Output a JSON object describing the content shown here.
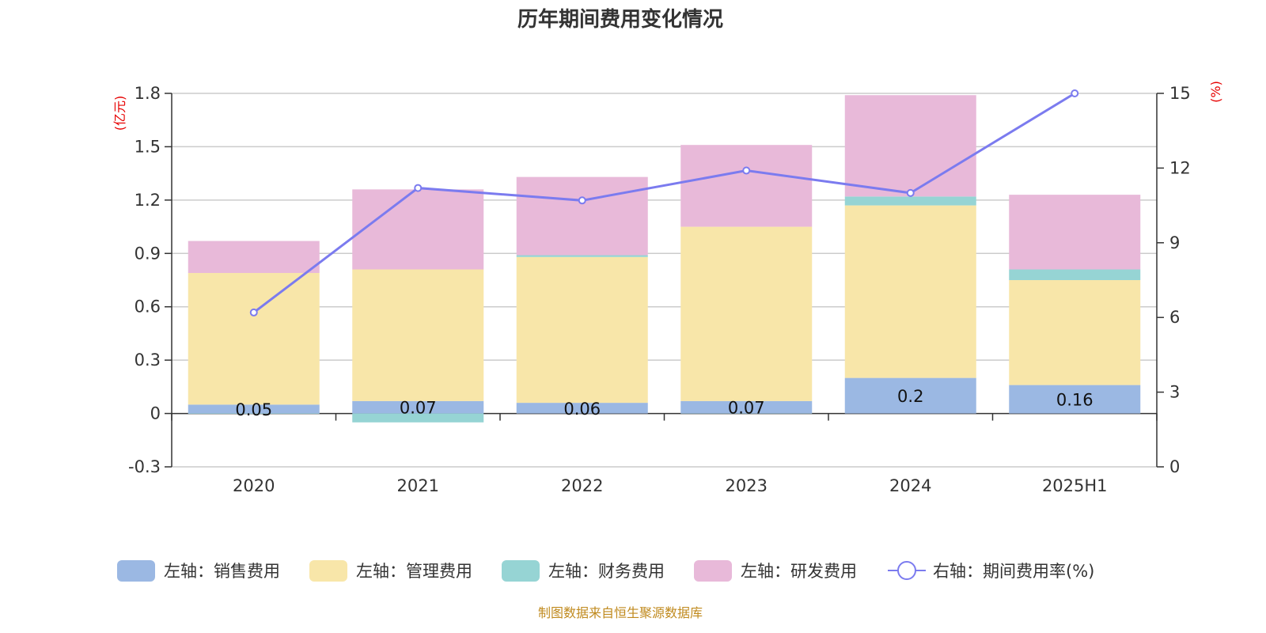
{
  "chart_data": {
    "type": "bar",
    "stacked": true,
    "title": "历年期间费用变化情况",
    "categories": [
      "2020",
      "2021",
      "2022",
      "2023",
      "2024",
      "2025H1"
    ],
    "left_axis": {
      "unit": "(亿元)",
      "ylim": [
        -0.3,
        1.8
      ],
      "ticks": [
        "-0.3",
        "0",
        "0.3",
        "0.6",
        "0.9",
        "1.2",
        "1.5",
        "1.8"
      ]
    },
    "right_axis": {
      "unit": "(%)",
      "ylim": [
        0,
        15
      ],
      "ticks": [
        "0",
        "3",
        "6",
        "9",
        "12",
        "15"
      ]
    },
    "series": [
      {
        "name": "左轴：销售费用",
        "type": "bar",
        "color": "#9bb8e3",
        "values": [
          0.05,
          0.07,
          0.06,
          0.07,
          0.2,
          0.16
        ],
        "labels": [
          "0.05",
          "0.07",
          "0.06",
          "0.07",
          "0.2",
          "0.16"
        ]
      },
      {
        "name": "左轴：管理费用",
        "type": "bar",
        "color": "#f8e6a9",
        "values": [
          0.74,
          0.74,
          0.82,
          0.98,
          0.97,
          0.59
        ]
      },
      {
        "name": "左轴：财务费用",
        "type": "bar",
        "color": "#96d4d4",
        "values": [
          -0.002,
          -0.05,
          0.01,
          -0.001,
          0.05,
          0.06
        ]
      },
      {
        "name": "左轴：研发费用",
        "type": "bar",
        "color": "#e8b9d9",
        "values": [
          0.18,
          0.45,
          0.44,
          0.46,
          0.57,
          0.42
        ]
      },
      {
        "name": "右轴：期间费用率(%)",
        "type": "line",
        "color": "#7b7bef",
        "values": [
          6.2,
          11.2,
          10.7,
          11.9,
          11.0,
          15.0
        ]
      }
    ],
    "legend_position": "bottom",
    "grid": true,
    "source_note": "制图数据来自恒生聚源数据库"
  }
}
